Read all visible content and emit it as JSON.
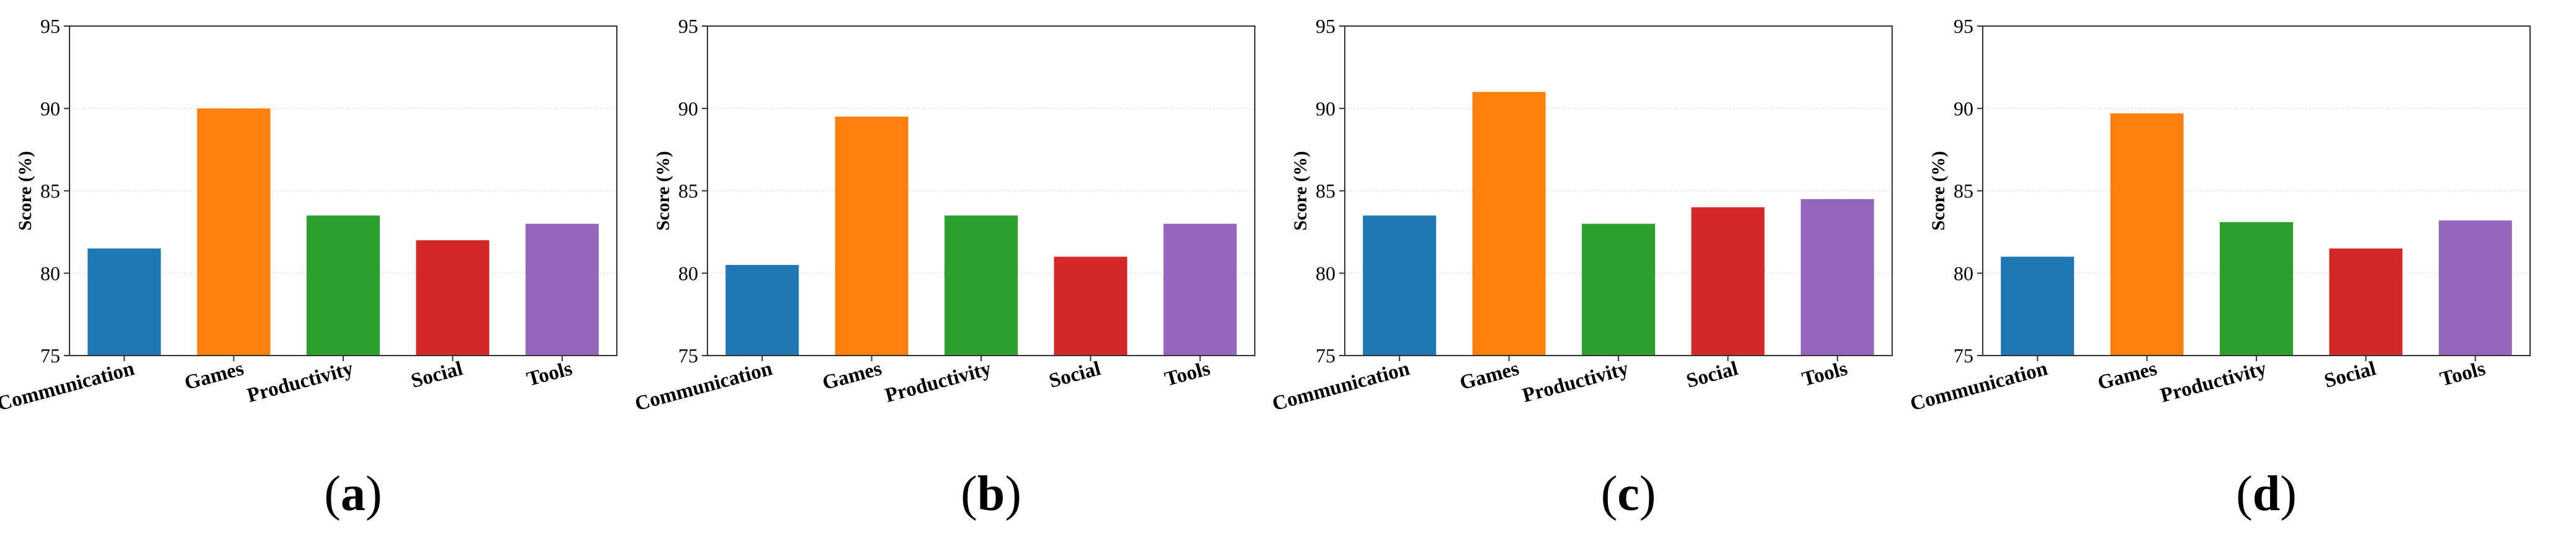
{
  "chart_data": [
    {
      "type": "bar",
      "panel_label": "a",
      "categories": [
        "Communication",
        "Games",
        "Productivity",
        "Social",
        "Tools"
      ],
      "values": [
        81.5,
        90.0,
        83.5,
        82.0,
        83.0
      ],
      "colors": [
        "#1f77b4",
        "#ff7f0e",
        "#2ca02c",
        "#d62728",
        "#9467bd"
      ],
      "ylabel": "Score (%)",
      "ylim": [
        75,
        95
      ],
      "yticks": [
        75,
        80,
        85,
        90,
        95
      ],
      "grid": "horizontal"
    },
    {
      "type": "bar",
      "panel_label": "b",
      "categories": [
        "Communication",
        "Games",
        "Productivity",
        "Social",
        "Tools"
      ],
      "values": [
        80.5,
        89.5,
        83.5,
        81.0,
        83.0
      ],
      "colors": [
        "#1f77b4",
        "#ff7f0e",
        "#2ca02c",
        "#d62728",
        "#9467bd"
      ],
      "ylabel": "Score (%)",
      "ylim": [
        75,
        95
      ],
      "yticks": [
        75,
        80,
        85,
        90,
        95
      ],
      "grid": "horizontal"
    },
    {
      "type": "bar",
      "panel_label": "c",
      "categories": [
        "Communication",
        "Games",
        "Productivity",
        "Social",
        "Tools"
      ],
      "values": [
        83.5,
        91.0,
        83.0,
        84.0,
        84.5
      ],
      "colors": [
        "#1f77b4",
        "#ff7f0e",
        "#2ca02c",
        "#d62728",
        "#9467bd"
      ],
      "ylabel": "Score (%)",
      "ylim": [
        75,
        95
      ],
      "yticks": [
        75,
        80,
        85,
        90,
        95
      ],
      "grid": "horizontal"
    },
    {
      "type": "bar",
      "panel_label": "d",
      "categories": [
        "Communication",
        "Games",
        "Productivity",
        "Social",
        "Tools"
      ],
      "values": [
        81.0,
        89.7,
        83.1,
        81.5,
        83.2
      ],
      "colors": [
        "#1f77b4",
        "#ff7f0e",
        "#2ca02c",
        "#d62728",
        "#9467bd"
      ],
      "ylabel": "Score (%)",
      "ylim": [
        75,
        95
      ],
      "yticks": [
        75,
        80,
        85,
        90,
        95
      ],
      "grid": "horizontal"
    }
  ]
}
